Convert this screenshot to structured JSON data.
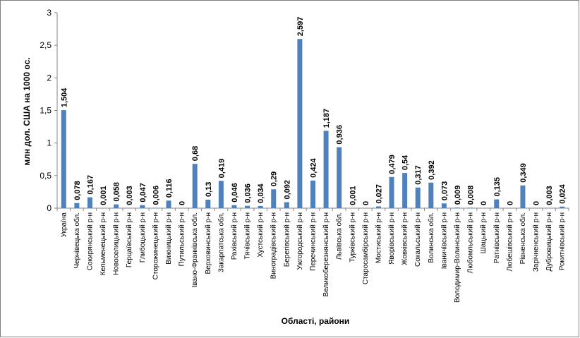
{
  "chart_data": {
    "type": "bar",
    "title": "",
    "xlabel": "Області, райони",
    "ylabel": "млн дол. США на 1000 ос.",
    "ylim": [
      0,
      3
    ],
    "yticks": [
      0,
      0.5,
      1,
      1.5,
      2,
      2.5,
      3
    ],
    "ytick_labels": [
      "0",
      "0,5",
      "1",
      "1,5",
      "2",
      "2,5",
      "3"
    ],
    "grid": false,
    "legend": "none",
    "bar_color": "#4f81bd",
    "categories": [
      "Україна",
      "Чернівецька обл.",
      "Сокирянський р-н",
      "Кельменецький р-н",
      "Новоселицький р-н",
      "Герцаївський р-н",
      "Глибоцький р-н",
      "Сторожинецький р-н",
      "Вижницький р-н",
      "Путильський р-н",
      "Івано-Франківська обл.",
      "Верховинський р-н",
      "Закарпатська обл.",
      "Рахівський р-н",
      "Тячівський р-н",
      "Хустський р-н",
      "Виноградівський р-н",
      "Берегівський р-н",
      "Ужгородський р-н",
      "Перечинський р-н",
      "Великоберезнянський р-н",
      "Львівська обл.",
      "Турківський р-н",
      "Старосамбірський р-н",
      "Мостиський р-н",
      "Яворівський р-н",
      "Жовківський р-н",
      "Сокальський р-н",
      "Волинська обл.",
      "Іваничівський р-н",
      "Володимир-Волинський р-н",
      "Любомльський р-н",
      "Шацький р-н",
      "Ратнівський р-н",
      "Любешівський р-н",
      "Рівненська обл.",
      "Зарічненський р-н",
      "Дубровицький р-н",
      "Рокитнівський р-н"
    ],
    "values": [
      1.504,
      0.078,
      0.167,
      0.001,
      0.058,
      0.003,
      0.047,
      0.006,
      0.116,
      0,
      0.68,
      0.13,
      0.419,
      0.046,
      0.036,
      0.034,
      0.29,
      0.092,
      2.597,
      0.424,
      1.187,
      0.936,
      0.001,
      0,
      0.027,
      0.479,
      0.54,
      0.317,
      0.392,
      0.073,
      0.009,
      0.008,
      0,
      0.135,
      0,
      0.349,
      0,
      0.003,
      0.024
    ],
    "data_labels": [
      "1,504",
      "0,078",
      "0,167",
      "0,001",
      "0,058",
      "0,003",
      "0,047",
      "0,006",
      "0,116",
      "0",
      "0,68",
      "0,13",
      "0,419",
      "0,046",
      "0,036",
      "0,034",
      "0,29",
      "0,092",
      "2,597",
      "0,424",
      "1,187",
      "0,936",
      "0,001",
      "0",
      "0,027",
      "0,479",
      "0,54",
      "0,317",
      "0,392",
      "0,073",
      "0,009",
      "0,008",
      "0",
      "0,135",
      "0",
      "0,349",
      "0",
      "0,003",
      "0,024"
    ]
  }
}
